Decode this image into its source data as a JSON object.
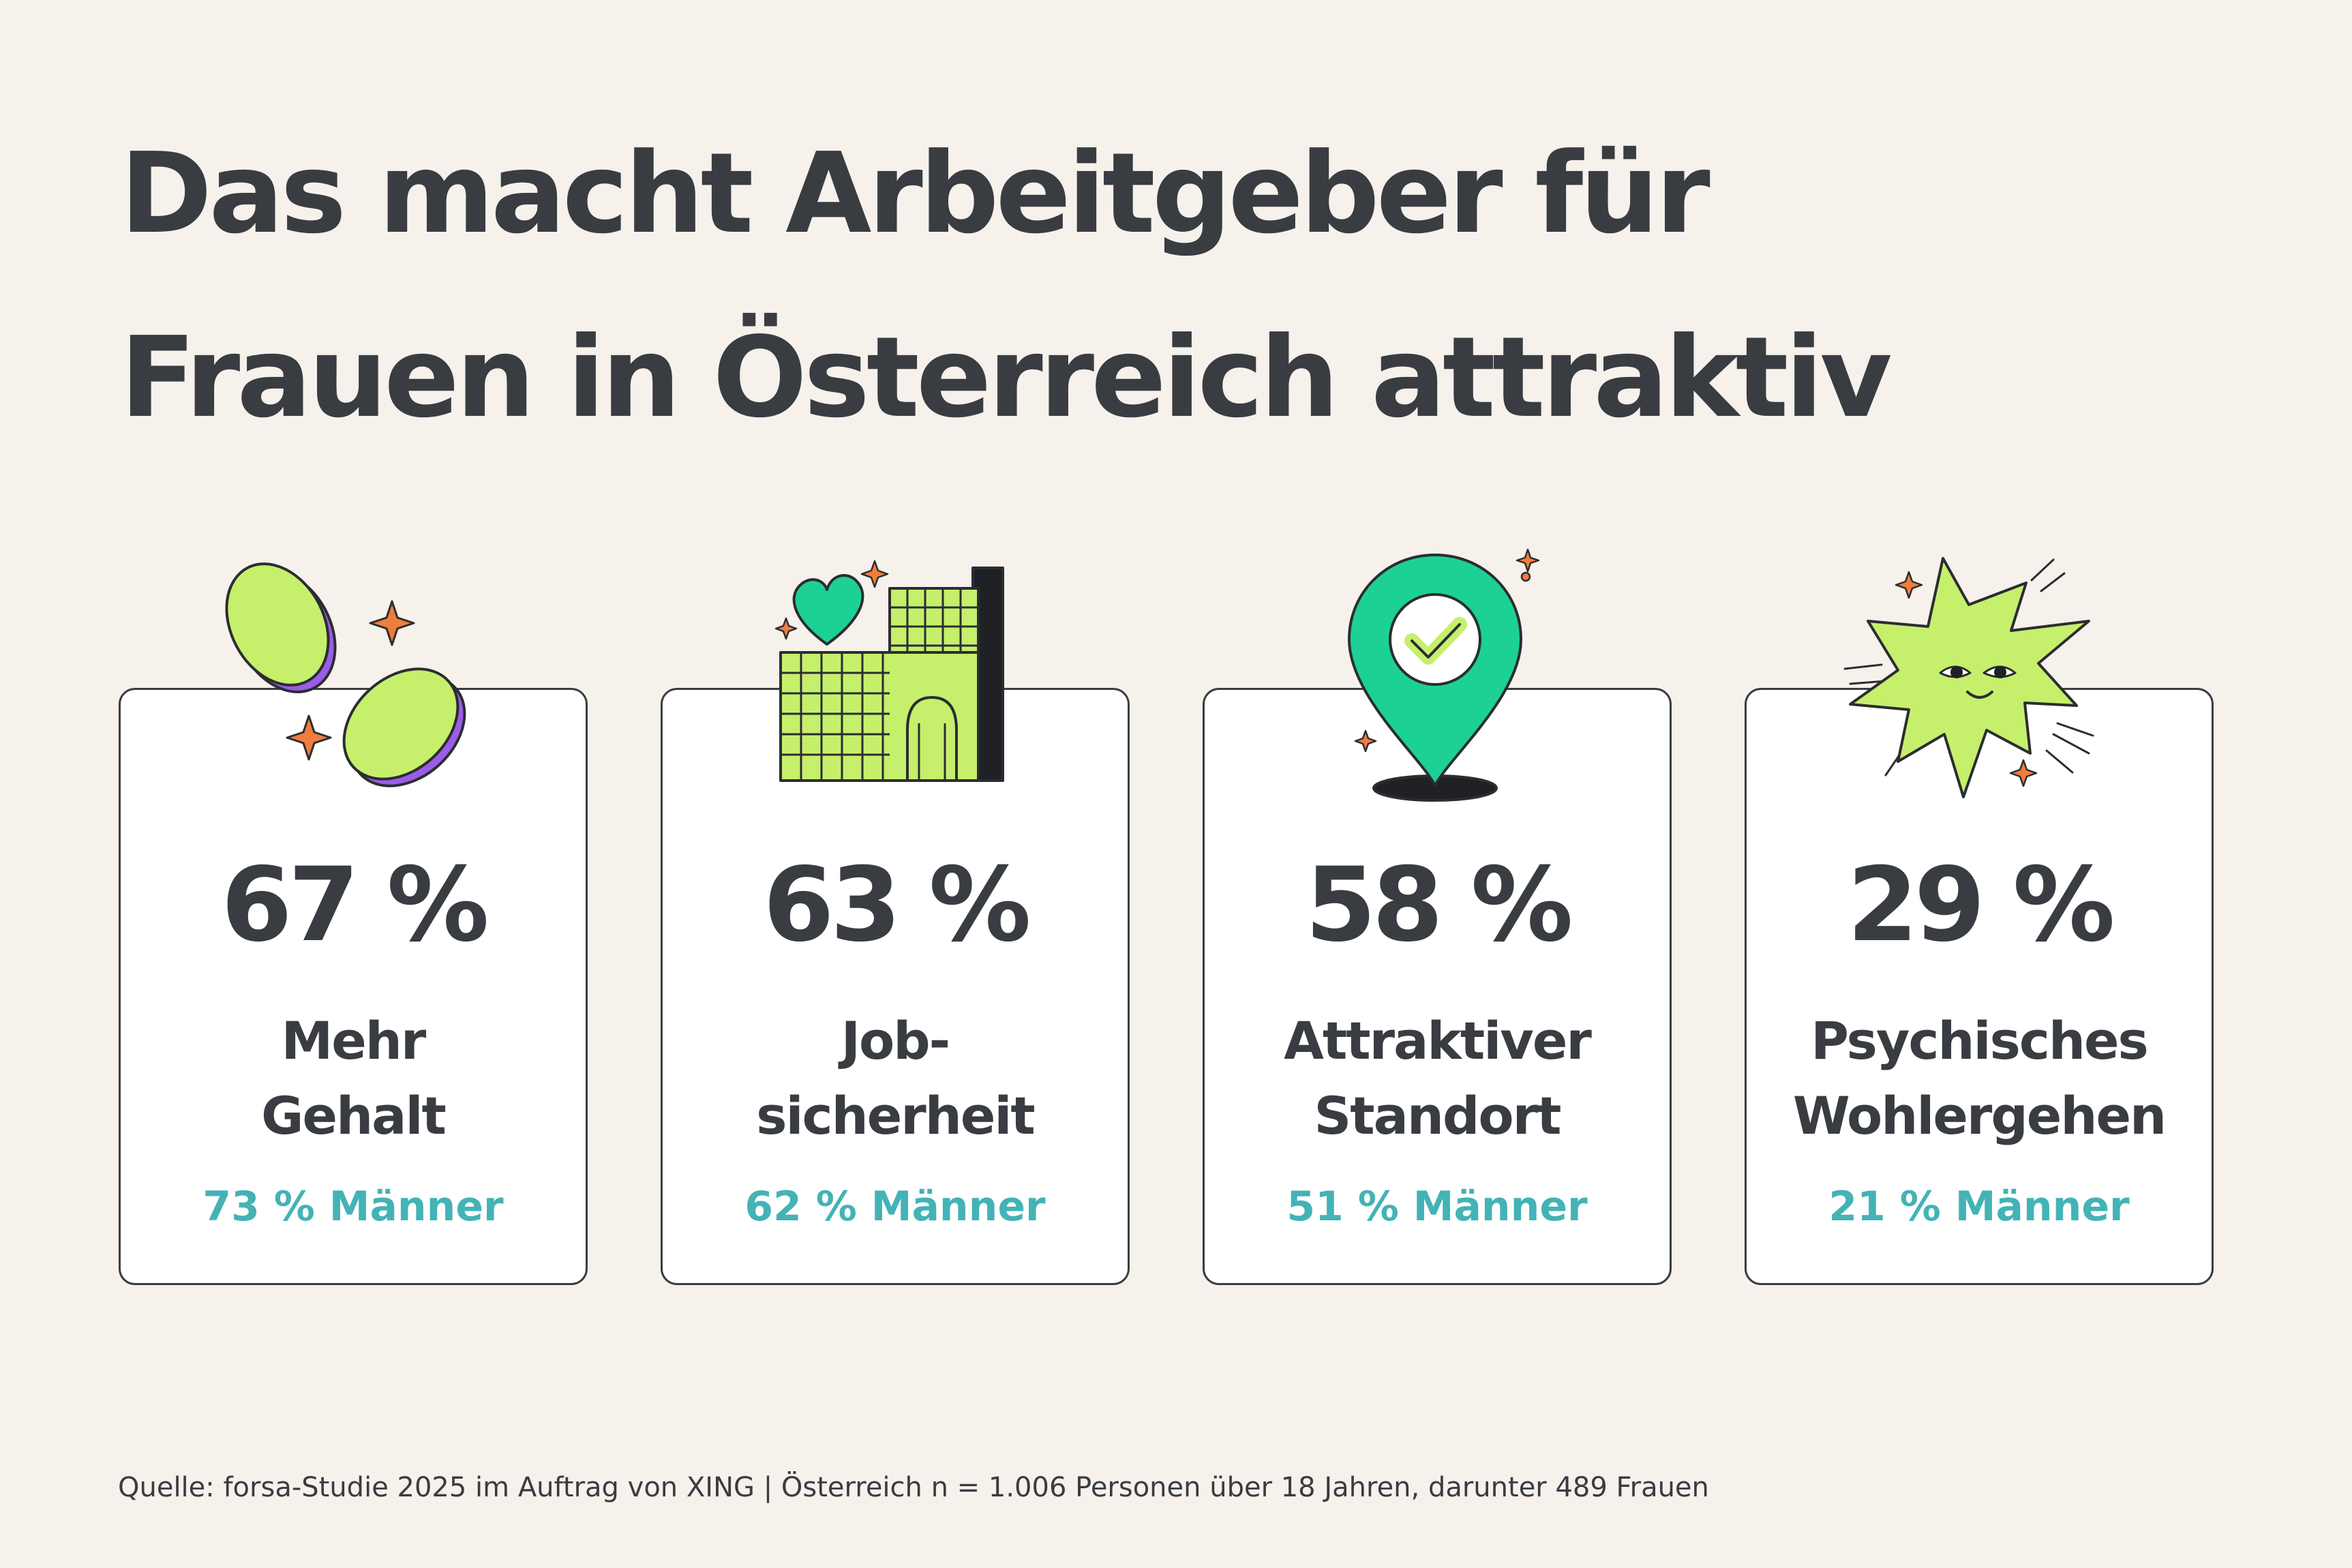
{
  "title": {
    "line1": "Das macht Arbeitgeber für",
    "line2": "Frauen in Österreich attraktiv"
  },
  "cards": [
    {
      "icon": "coins-icon",
      "percent": "67 %",
      "label_line1": "Mehr",
      "label_line2": "Gehalt",
      "men": "73 %  Männer"
    },
    {
      "icon": "building-heart-icon",
      "percent": "63 %",
      "label_line1": "Job-",
      "label_line2": "sicherheit",
      "men": "62 % Männer"
    },
    {
      "icon": "location-pin-check-icon",
      "percent": "58 %",
      "label_line1": "Attraktiver",
      "label_line2": "Standort",
      "men": "51 % Männer"
    },
    {
      "icon": "happy-star-icon",
      "percent": "29 %",
      "label_line1": "Psychisches",
      "label_line2": "Wohlergehen",
      "men": "21 % Männer"
    }
  ],
  "source": "Quelle: forsa-Studie 2025 im Auftrag von XING | Österreich n = 1.006 Personen über 18 Jahren, darunter 489 Frauen",
  "colors": {
    "background": "#f6f1eb",
    "text": "#393c41",
    "accent_teal": "#43b3b6",
    "lime": "#c6ef6c",
    "green": "#1dd195",
    "purple": "#9b5ce8",
    "orange": "#f07d3b"
  }
}
